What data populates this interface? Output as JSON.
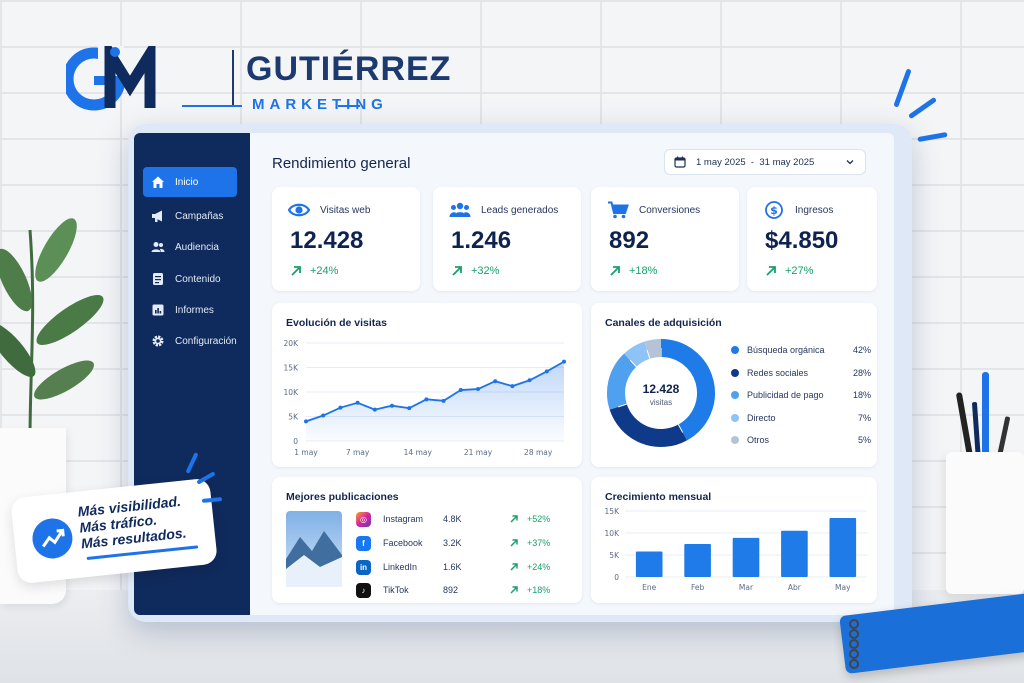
{
  "brand": {
    "monogram": "GM",
    "name": "GUTIÉRREZ",
    "subtitle": "MARKETING"
  },
  "sidebar": {
    "items": [
      {
        "label": "Inicio",
        "icon": "home-icon",
        "active": true
      },
      {
        "label": "Campañas",
        "icon": "megaphone-icon",
        "active": false
      },
      {
        "label": "Audiencia",
        "icon": "users-icon",
        "active": false
      },
      {
        "label": "Contenido",
        "icon": "document-icon",
        "active": false
      },
      {
        "label": "Informes",
        "icon": "report-icon",
        "active": false
      },
      {
        "label": "Configuración",
        "icon": "gear-icon",
        "active": false
      }
    ]
  },
  "header": {
    "title": "Rendimiento general",
    "date_range": "1 may 2025  -  31 may 2025"
  },
  "kpis": [
    {
      "label": "Visitas web",
      "value": "12.428",
      "delta": "+24%",
      "icon": "eye-icon"
    },
    {
      "label": "Leads generados",
      "value": "1.246",
      "delta": "+32%",
      "icon": "users-icon"
    },
    {
      "label": "Conversiones",
      "value": "892",
      "delta": "+18%",
      "icon": "cart-icon"
    },
    {
      "label": "Ingresos",
      "value": "$4.850",
      "delta": "+27%",
      "icon": "dollar-icon"
    }
  ],
  "visits": {
    "title": "Evolución de visitas"
  },
  "channels": {
    "title": "Canales de adquisición",
    "center_value": "12.428",
    "center_label": "visitas"
  },
  "posts": {
    "title": "Mejores publicaciones",
    "rows": [
      {
        "network": "Instagram",
        "count": "4.8K",
        "delta": "+52%",
        "icon": "instagram-icon"
      },
      {
        "network": "Facebook",
        "count": "3.2K",
        "delta": "+37%",
        "icon": "facebook-icon"
      },
      {
        "network": "LinkedIn",
        "count": "1.6K",
        "delta": "+24%",
        "icon": "linkedin-icon"
      },
      {
        "network": "TikTok",
        "count": "892",
        "delta": "+18%",
        "icon": "tiktok-icon"
      }
    ]
  },
  "growth": {
    "title": "Crecimiento mensual"
  },
  "sticker": {
    "line1": "Más visibilidad.",
    "line2": "Más tráfico.",
    "line3": "Más resultados."
  },
  "colors": {
    "accent": "#1e73e8",
    "sidebar": "#0f2a5c",
    "positive": "#18a06b"
  },
  "chart_data": [
    {
      "type": "area",
      "title": "Evolución de visitas",
      "x_ticks": [
        "1 may",
        "7 may",
        "14 may",
        "21 may",
        "28 may"
      ],
      "y_ticks": [
        "0",
        "5K",
        "10K",
        "15K",
        "20K"
      ],
      "ylim": [
        0,
        20000
      ],
      "x": [
        1,
        3,
        5,
        7,
        9,
        11,
        13,
        15,
        17,
        19,
        21,
        23,
        25,
        27,
        29,
        31
      ],
      "values": [
        4000,
        5200,
        6800,
        7800,
        6400,
        7200,
        6700,
        8500,
        8200,
        10400,
        10600,
        12200,
        11200,
        12400,
        14200,
        16200
      ],
      "grid": true
    },
    {
      "type": "pie",
      "title": "Canales de adquisición",
      "labels": [
        "Búsqueda orgánica",
        "Redes sociales",
        "Publicidad de pago",
        "Directo",
        "Otros"
      ],
      "values": [
        42,
        28,
        18,
        7,
        5
      ],
      "value_labels": [
        "42%",
        "28%",
        "18%",
        "7%",
        "5%"
      ],
      "colors": [
        "#1e7be8",
        "#0f3a8a",
        "#4fa0ee",
        "#8dc3f5",
        "#b4c3d6"
      ],
      "legend": "right"
    },
    {
      "type": "bar",
      "title": "Crecimiento mensual",
      "categories": [
        "Ene",
        "Feb",
        "Mar",
        "Abr",
        "May"
      ],
      "values": [
        5800,
        7500,
        8900,
        10500,
        13400
      ],
      "y_ticks": [
        "0",
        "5K",
        "10K",
        "15K"
      ],
      "ylim": [
        0,
        15000
      ],
      "grid": true
    }
  ]
}
